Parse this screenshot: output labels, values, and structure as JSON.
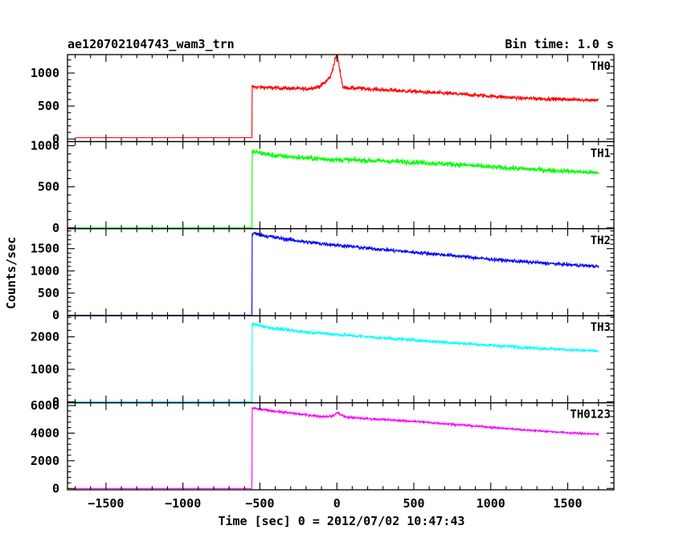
{
  "header": {
    "title": "ae120702104743_wam3_trn",
    "bin_time": "Bin time: 1.0 s"
  },
  "chart_data": {
    "type": "line",
    "title": "ae120702104743_wam3_trn",
    "subtitle": "Bin time: 1.0 s",
    "xlabel": "Time [sec] 0 = 2012/07/02 10:47:43",
    "ylabel": "Counts/sec",
    "xlim": [
      -1750,
      1800
    ],
    "xticks": [
      -1500,
      -1000,
      -500,
      0,
      500,
      1000,
      1500
    ],
    "xtick_labels": [
      "−1500",
      "−1000",
      "−500",
      "0",
      "500",
      "1000",
      "1500"
    ],
    "grid": false,
    "panels": [
      {
        "name": "TH0",
        "color": "#ff0000",
        "ylim": [
          -40,
          1280
        ],
        "yticks": [
          0,
          500,
          1000
        ],
        "ytick_labels": [
          "0",
          "500",
          "1000"
        ],
        "x": [
          -1700,
          -552,
          -550,
          -400,
          -200,
          -120,
          -80,
          -40,
          0,
          40,
          200,
          500,
          800,
          1000,
          1200,
          1500,
          1700
        ],
        "y": [
          20,
          20,
          790,
          775,
          760,
          790,
          850,
          950,
          1300,
          780,
          760,
          720,
          680,
          650,
          620,
          600,
          590
        ]
      },
      {
        "name": "TH1",
        "color": "#00ff00",
        "ylim": [
          -10,
          1050
        ],
        "yticks": [
          0,
          500,
          1000
        ],
        "ytick_labels": [
          "0",
          "500",
          "1000"
        ],
        "x": [
          -1700,
          -552,
          -550,
          -400,
          -200,
          0,
          200,
          500,
          800,
          1000,
          1200,
          1500,
          1700
        ],
        "y": [
          0,
          0,
          930,
          880,
          850,
          830,
          820,
          800,
          770,
          740,
          720,
          690,
          670
        ]
      },
      {
        "name": "TH2",
        "color": "#0000ff",
        "ylim": [
          -10,
          1950
        ],
        "yticks": [
          0,
          500,
          1000,
          1500
        ],
        "ytick_labels": [
          "0",
          "500",
          "1000",
          "1500"
        ],
        "x": [
          -1700,
          -552,
          -550,
          -400,
          -200,
          0,
          200,
          500,
          800,
          1000,
          1200,
          1500,
          1700
        ],
        "y": [
          0,
          0,
          1850,
          1750,
          1650,
          1580,
          1510,
          1420,
          1330,
          1260,
          1210,
          1140,
          1100
        ]
      },
      {
        "name": "TH3",
        "color": "#00ffff",
        "ylim": [
          -30,
          2650
        ],
        "yticks": [
          0,
          1000,
          2000
        ],
        "ytick_labels": [
          "0",
          "1000",
          "2000"
        ],
        "x": [
          -1700,
          -552,
          -550,
          -400,
          -200,
          0,
          200,
          500,
          800,
          1000,
          1200,
          1500,
          1700
        ],
        "y": [
          0,
          0,
          2400,
          2250,
          2150,
          2070,
          2000,
          1900,
          1800,
          1740,
          1680,
          1600,
          1560
        ]
      },
      {
        "name": "TH0123",
        "color": "#ff00ff",
        "ylim": [
          -100,
          6200
        ],
        "yticks": [
          0,
          2000,
          4000,
          6000
        ],
        "ytick_labels": [
          "0",
          "2000",
          "4000",
          "6000"
        ],
        "x": [
          -1700,
          -552,
          -550,
          -450,
          -300,
          -100,
          -20,
          0,
          60,
          200,
          500,
          800,
          1000,
          1200,
          1500,
          1700
        ],
        "y": [
          0,
          0,
          5800,
          5650,
          5450,
          5200,
          5250,
          5500,
          5150,
          5050,
          4850,
          4600,
          4420,
          4250,
          4030,
          3920
        ]
      }
    ]
  }
}
